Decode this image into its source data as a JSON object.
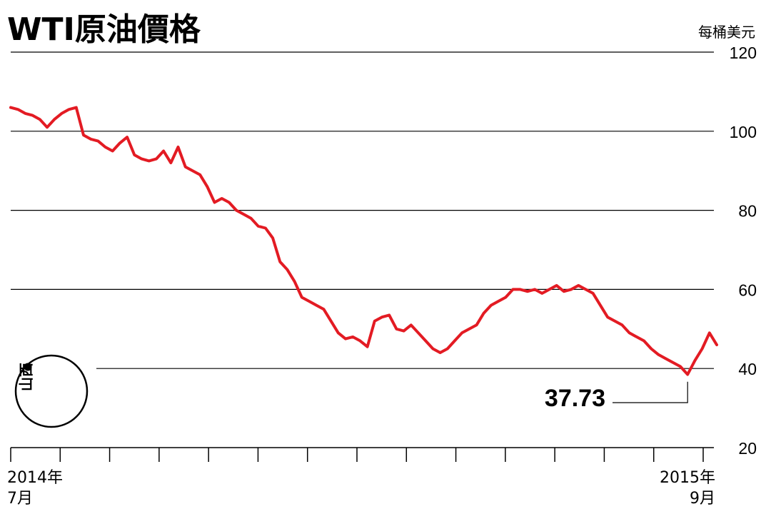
{
  "chart_data": {
    "type": "line",
    "title": "WTI原油價格",
    "unit_label": "每桶美元",
    "ylim": [
      20,
      120
    ],
    "y_ticks": [
      120,
      100,
      80,
      60,
      40,
      20
    ],
    "grid": true,
    "x_labels": [
      {
        "year": "2014年",
        "month": "7月"
      },
      {
        "year": "2015年",
        "month": "9月"
      }
    ],
    "series": [
      {
        "color": "#e31b23",
        "values": [
          106,
          105.5,
          104.5,
          104,
          103,
          101,
          103,
          104.5,
          105.5,
          106,
          99,
          98,
          97.5,
          96,
          95,
          97,
          98.5,
          94,
          93,
          92.5,
          93,
          95,
          92,
          96,
          91,
          90,
          89,
          86,
          82,
          83,
          82,
          80,
          79,
          78,
          76,
          75.5,
          73,
          67,
          65,
          62,
          58,
          57,
          56,
          55,
          52,
          49,
          47.5,
          48,
          47,
          45.5,
          52,
          53,
          53.5,
          50,
          49.5,
          51,
          49,
          47,
          45,
          44,
          45,
          47,
          49,
          50,
          51,
          54,
          56,
          57,
          58,
          60,
          60,
          59.5,
          60,
          59,
          60,
          61,
          59.5,
          60,
          61,
          60,
          59,
          56,
          53,
          52,
          51,
          49,
          48,
          47,
          45,
          43.5,
          42.5,
          41.5,
          40.5,
          38.5,
          42,
          45,
          49,
          46
        ]
      }
    ],
    "annotations": [
      {
        "text": "37.73",
        "value": 37.73,
        "target": "min"
      }
    ]
  },
  "logo": {
    "text": "山西",
    "name": "logo"
  }
}
